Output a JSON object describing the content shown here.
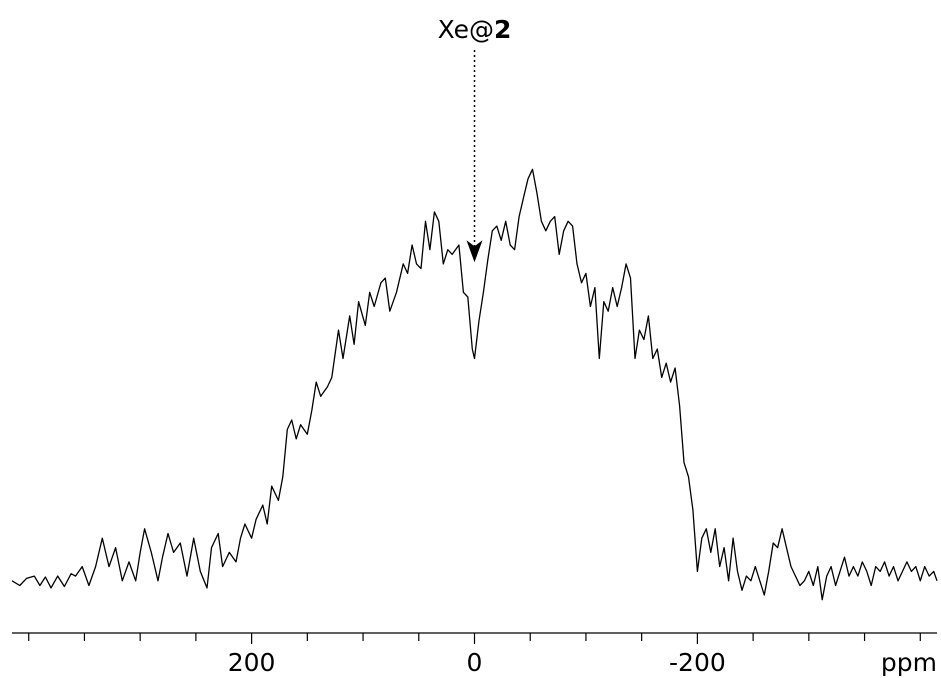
{
  "chart_data": {
    "type": "line",
    "title": "",
    "xlabel": "",
    "ylabel": "",
    "x_unit": "ppm",
    "x_reversed": true,
    "xlim": [
      415,
      -415
    ],
    "ylim": [
      0,
      1
    ],
    "grid": false,
    "ticks": {
      "major": [
        200,
        0,
        -200
      ],
      "major_labels": [
        "200",
        "0",
        "-200"
      ],
      "minor_step": 50
    },
    "annotations": [
      {
        "text_normal": "Xe@",
        "text_bold": "2",
        "x": 0,
        "y_target": 0.75,
        "arrow": "dotted"
      }
    ],
    "series": [
      {
        "color": "#000000",
        "points": [
          [
            415,
            0.03
          ],
          [
            408,
            0.02
          ],
          [
            402,
            0.035
          ],
          [
            395,
            0.04
          ],
          [
            390,
            0.02
          ],
          [
            385,
            0.038
          ],
          [
            380,
            0.015
          ],
          [
            374,
            0.04
          ],
          [
            368,
            0.018
          ],
          [
            362,
            0.045
          ],
          [
            358,
            0.04
          ],
          [
            352,
            0.06
          ],
          [
            346,
            0.02
          ],
          [
            340,
            0.06
          ],
          [
            334,
            0.12
          ],
          [
            328,
            0.06
          ],
          [
            322,
            0.1
          ],
          [
            316,
            0.03
          ],
          [
            310,
            0.07
          ],
          [
            304,
            0.03
          ],
          [
            300,
            0.09
          ],
          [
            296,
            0.14
          ],
          [
            290,
            0.09
          ],
          [
            284,
            0.03
          ],
          [
            280,
            0.08
          ],
          [
            275,
            0.13
          ],
          [
            270,
            0.09
          ],
          [
            264,
            0.11
          ],
          [
            258,
            0.04
          ],
          [
            252,
            0.12
          ],
          [
            246,
            0.05
          ],
          [
            240,
            0.015
          ],
          [
            236,
            0.1
          ],
          [
            230,
            0.13
          ],
          [
            226,
            0.06
          ],
          [
            220,
            0.09
          ],
          [
            214,
            0.07
          ],
          [
            210,
            0.12
          ],
          [
            206,
            0.15
          ],
          [
            200,
            0.12
          ],
          [
            196,
            0.16
          ],
          [
            190,
            0.19
          ],
          [
            186,
            0.15
          ],
          [
            182,
            0.23
          ],
          [
            176,
            0.2
          ],
          [
            172,
            0.25
          ],
          [
            168,
            0.35
          ],
          [
            164,
            0.37
          ],
          [
            160,
            0.33
          ],
          [
            156,
            0.36
          ],
          [
            150,
            0.34
          ],
          [
            146,
            0.39
          ],
          [
            142,
            0.45
          ],
          [
            138,
            0.42
          ],
          [
            132,
            0.44
          ],
          [
            128,
            0.46
          ],
          [
            122,
            0.56
          ],
          [
            118,
            0.5
          ],
          [
            112,
            0.59
          ],
          [
            108,
            0.53
          ],
          [
            104,
            0.62
          ],
          [
            98,
            0.57
          ],
          [
            94,
            0.64
          ],
          [
            90,
            0.61
          ],
          [
            84,
            0.66
          ],
          [
            80,
            0.67
          ],
          [
            76,
            0.6
          ],
          [
            70,
            0.64
          ],
          [
            64,
            0.7
          ],
          [
            60,
            0.68
          ],
          [
            56,
            0.74
          ],
          [
            52,
            0.7
          ],
          [
            48,
            0.69
          ],
          [
            44,
            0.79
          ],
          [
            40,
            0.73
          ],
          [
            36,
            0.81
          ],
          [
            32,
            0.79
          ],
          [
            28,
            0.7
          ],
          [
            24,
            0.73
          ],
          [
            20,
            0.72
          ],
          [
            14,
            0.74
          ],
          [
            10,
            0.64
          ],
          [
            6,
            0.63
          ],
          [
            2,
            0.52
          ],
          [
            0,
            0.5
          ],
          [
            -4,
            0.58
          ],
          [
            -8,
            0.64
          ],
          [
            -12,
            0.71
          ],
          [
            -16,
            0.77
          ],
          [
            -20,
            0.78
          ],
          [
            -24,
            0.75
          ],
          [
            -28,
            0.79
          ],
          [
            -32,
            0.74
          ],
          [
            -36,
            0.73
          ],
          [
            -40,
            0.8
          ],
          [
            -44,
            0.84
          ],
          [
            -48,
            0.88
          ],
          [
            -52,
            0.9
          ],
          [
            -56,
            0.85
          ],
          [
            -60,
            0.79
          ],
          [
            -64,
            0.77
          ],
          [
            -68,
            0.79
          ],
          [
            -72,
            0.8
          ],
          [
            -76,
            0.72
          ],
          [
            -80,
            0.77
          ],
          [
            -84,
            0.79
          ],
          [
            -88,
            0.78
          ],
          [
            -92,
            0.7
          ],
          [
            -96,
            0.66
          ],
          [
            -100,
            0.68
          ],
          [
            -104,
            0.61
          ],
          [
            -108,
            0.65
          ],
          [
            -112,
            0.5
          ],
          [
            -116,
            0.62
          ],
          [
            -120,
            0.6
          ],
          [
            -124,
            0.65
          ],
          [
            -128,
            0.61
          ],
          [
            -132,
            0.65
          ],
          [
            -136,
            0.7
          ],
          [
            -140,
            0.67
          ],
          [
            -144,
            0.5
          ],
          [
            -148,
            0.56
          ],
          [
            -152,
            0.54
          ],
          [
            -156,
            0.59
          ],
          [
            -160,
            0.5
          ],
          [
            -164,
            0.52
          ],
          [
            -168,
            0.46
          ],
          [
            -172,
            0.49
          ],
          [
            -176,
            0.45
          ],
          [
            -180,
            0.48
          ],
          [
            -184,
            0.4
          ],
          [
            -188,
            0.28
          ],
          [
            -192,
            0.25
          ],
          [
            -196,
            0.18
          ],
          [
            -200,
            0.05
          ],
          [
            -204,
            0.12
          ],
          [
            -208,
            0.14
          ],
          [
            -212,
            0.09
          ],
          [
            -216,
            0.14
          ],
          [
            -220,
            0.06
          ],
          [
            -224,
            0.1
          ],
          [
            -228,
            0.03
          ],
          [
            -232,
            0.12
          ],
          [
            -236,
            0.05
          ],
          [
            -240,
            0.01
          ],
          [
            -244,
            0.04
          ],
          [
            -248,
            0.03
          ],
          [
            -252,
            0.06
          ],
          [
            -256,
            0.03
          ],
          [
            -260,
            0.0
          ],
          [
            -264,
            0.05
          ],
          [
            -268,
            0.11
          ],
          [
            -272,
            0.1
          ],
          [
            -276,
            0.14
          ],
          [
            -280,
            0.1
          ],
          [
            -284,
            0.06
          ],
          [
            -288,
            0.04
          ],
          [
            -292,
            0.02
          ],
          [
            -296,
            0.03
          ],
          [
            -300,
            0.05
          ],
          [
            -304,
            0.02
          ],
          [
            -308,
            0.06
          ],
          [
            -312,
            -0.01
          ],
          [
            -316,
            0.04
          ],
          [
            -320,
            0.06
          ],
          [
            -324,
            0.02
          ],
          [
            -328,
            0.05
          ],
          [
            -332,
            0.08
          ],
          [
            -336,
            0.04
          ],
          [
            -340,
            0.06
          ],
          [
            -344,
            0.04
          ],
          [
            -348,
            0.07
          ],
          [
            -352,
            0.05
          ],
          [
            -356,
            0.02
          ],
          [
            -360,
            0.06
          ],
          [
            -364,
            0.05
          ],
          [
            -368,
            0.07
          ],
          [
            -372,
            0.04
          ],
          [
            -376,
            0.06
          ],
          [
            -380,
            0.03
          ],
          [
            -384,
            0.05
          ],
          [
            -388,
            0.07
          ],
          [
            -392,
            0.05
          ],
          [
            -396,
            0.06
          ],
          [
            -400,
            0.03
          ],
          [
            -404,
            0.06
          ],
          [
            -408,
            0.04
          ],
          [
            -412,
            0.05
          ],
          [
            -415,
            0.03
          ]
        ]
      }
    ]
  }
}
